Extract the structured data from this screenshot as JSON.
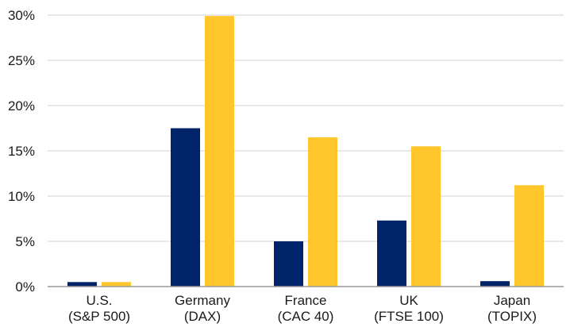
{
  "chart_data": {
    "type": "bar",
    "categories": [
      [
        "U.S.",
        "(S&P 500)"
      ],
      [
        "Germany",
        "(DAX)"
      ],
      [
        "France",
        "(CAC 40)"
      ],
      [
        "UK",
        "(FTSE 100)"
      ],
      [
        "Japan",
        "(TOPIX)"
      ]
    ],
    "series": [
      {
        "values": [
          0.5,
          17.5,
          5.0,
          7.3,
          0.6
        ],
        "color": "#002469"
      },
      {
        "values": [
          0.5,
          29.9,
          16.5,
          15.5,
          11.2
        ],
        "color": "#ffc72c"
      }
    ],
    "title": "",
    "xlabel": "",
    "ylabel": "",
    "ylim": [
      0,
      30
    ],
    "yticks": [
      0,
      5,
      10,
      15,
      20,
      25,
      30
    ],
    "ytick_labels": [
      "0%",
      "5%",
      "10%",
      "15%",
      "20%",
      "25%",
      "30%"
    ],
    "grid": true,
    "legend": "none"
  }
}
